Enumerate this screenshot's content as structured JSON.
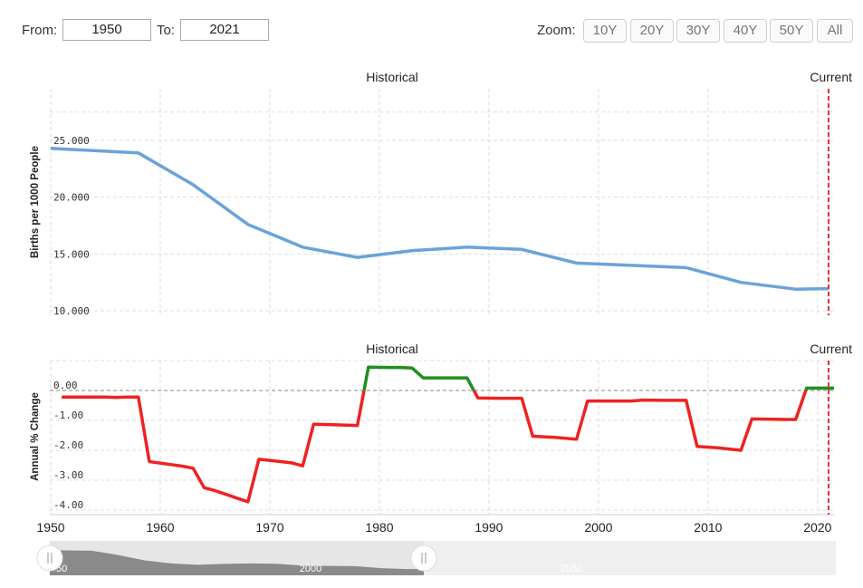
{
  "toolbar": {
    "from_label": "From:",
    "from_value": "1950",
    "to_label": "To:",
    "to_value": "2021",
    "zoom_label": "Zoom:",
    "zoom_buttons": [
      "10Y",
      "20Y",
      "30Y",
      "40Y",
      "50Y",
      "All"
    ]
  },
  "colors": {
    "birth_rate_line": "#6aa3d8",
    "increase": "#1f8f1f",
    "decrease": "#ee2222",
    "current_marker": "#e03030",
    "navigator_fill": "#8a8a8a",
    "navigator_bg": "#e6e6e6"
  },
  "navigator": {
    "labels": [
      "50",
      "2000",
      "2050"
    ]
  },
  "chart_data": [
    {
      "type": "line",
      "section_labels": {
        "left": "Historical",
        "right": "Current"
      },
      "ylabel": "Births per 1000 People",
      "yticks": [
        "25.000",
        "20.000",
        "15.000",
        "10.000"
      ],
      "ylim": [
        10,
        27.5
      ],
      "xlim": [
        1950,
        2021.5
      ],
      "current_marker_x": 2021,
      "grid": true,
      "series": [
        {
          "x": [
            1950,
            1958,
            1963,
            1968,
            1973,
            1978,
            1983,
            1988,
            1993,
            1998,
            2003,
            2008,
            2013,
            2018,
            2021
          ],
          "values": [
            24.3,
            23.9,
            21.1,
            17.6,
            15.6,
            14.7,
            15.3,
            15.6,
            15.4,
            14.2,
            14.0,
            13.8,
            12.5,
            11.9,
            11.95
          ]
        }
      ]
    },
    {
      "type": "line",
      "section_labels": {
        "left": "Historical",
        "right": "Current"
      },
      "ylabel": "Annual % Change",
      "yticks": [
        "0.00",
        "-1.00",
        "-2.00",
        "-3.00",
        "-4.00"
      ],
      "ylim": [
        -4.0,
        1.0
      ],
      "xlim": [
        1950,
        2021.5
      ],
      "xticks": [
        "1950",
        "1960",
        "1970",
        "1980",
        "1990",
        "2000",
        "2010",
        "2020"
      ],
      "current_marker_x": 2021,
      "grid": true,
      "series": [
        {
          "x": [
            1951,
            1954,
            1955,
            1956,
            1957,
            1958,
            1959,
            1961,
            1962,
            1963,
            1964,
            1965,
            1967,
            1968,
            1969,
            1971,
            1972,
            1973,
            1974,
            1976,
            1977,
            1978,
            1979,
            1981,
            1982,
            1983,
            1984,
            1986,
            1987,
            1988,
            1989,
            1991,
            1992,
            1993,
            1994,
            1996,
            1997,
            1998,
            1999,
            2002,
            2003,
            2004,
            2006,
            2007,
            2008,
            2009,
            2011,
            2012,
            2013,
            2014,
            2016,
            2017,
            2018,
            2019,
            2021.5
          ],
          "values": [
            -0.22,
            -0.22,
            -0.22,
            -0.23,
            -0.22,
            -0.22,
            -2.38,
            -2.48,
            -2.53,
            -2.6,
            -3.25,
            -3.35,
            -3.6,
            -3.72,
            -2.3,
            -2.38,
            -2.42,
            -2.52,
            -1.13,
            -1.15,
            -1.16,
            -1.17,
            0.78,
            0.77,
            0.77,
            0.75,
            0.42,
            0.42,
            0.42,
            0.42,
            -0.25,
            -0.26,
            -0.26,
            -0.26,
            -1.53,
            -1.57,
            -1.6,
            -1.63,
            -0.35,
            -0.35,
            -0.35,
            -0.32,
            -0.33,
            -0.33,
            -0.33,
            -1.87,
            -1.92,
            -1.96,
            -2.0,
            -0.95,
            -0.96,
            -0.97,
            -0.97,
            0.08,
            0.08
          ]
        }
      ]
    }
  ]
}
